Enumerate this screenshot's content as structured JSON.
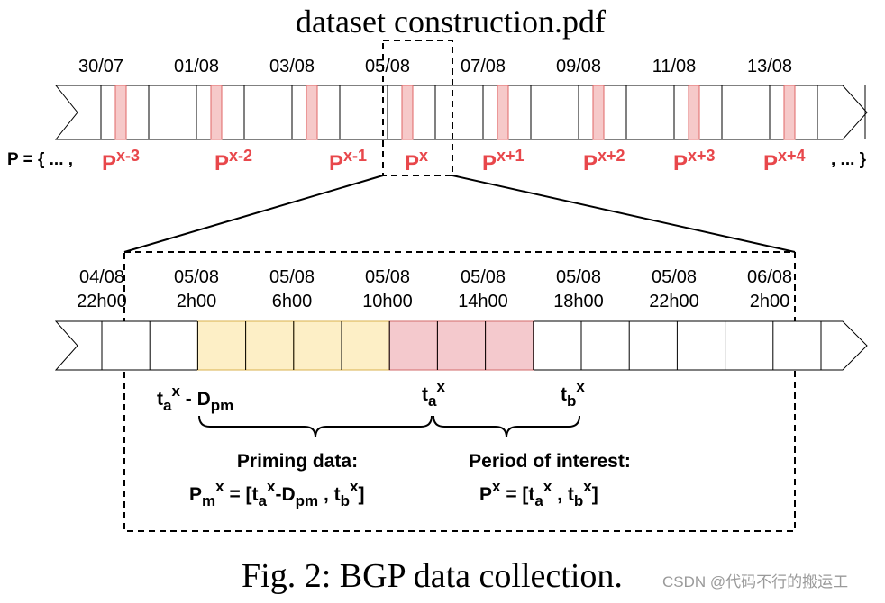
{
  "header": {
    "title": "dataset construction.pdf"
  },
  "top_timeline": {
    "dates": [
      "30/07",
      "01/08",
      "03/08",
      "05/08",
      "07/08",
      "09/08",
      "11/08",
      "13/08"
    ],
    "set_prefix": "P = { ... ,",
    "set_suffix": ", ... }",
    "periods": [
      {
        "base": "P",
        "sup": "x-3"
      },
      {
        "base": "P",
        "sup": "x-2"
      },
      {
        "base": "P",
        "sup": "x-1"
      },
      {
        "base": "P",
        "sup": "x"
      },
      {
        "base": "P",
        "sup": "x+1"
      },
      {
        "base": "P",
        "sup": "x+2"
      },
      {
        "base": "P",
        "sup": "x+3"
      },
      {
        "base": "P",
        "sup": "x+4"
      }
    ]
  },
  "zoom_timeline": {
    "times": [
      {
        "date": "04/08",
        "hour": "22h00"
      },
      {
        "date": "05/08",
        "hour": "2h00"
      },
      {
        "date": "05/08",
        "hour": "6h00"
      },
      {
        "date": "05/08",
        "hour": "10h00"
      },
      {
        "date": "05/08",
        "hour": "14h00"
      },
      {
        "date": "05/08",
        "hour": "18h00"
      },
      {
        "date": "05/08",
        "hour": "22h00"
      },
      {
        "date": "06/08",
        "hour": "2h00"
      }
    ],
    "markers": {
      "ta_minus_dpm": {
        "t": "t",
        "sub": "a",
        "sup": "x",
        "rest": " - D",
        "rest_sub": "pm"
      },
      "ta": {
        "t": "t",
        "sub": "a",
        "sup": "x"
      },
      "tb": {
        "t": "t",
        "sub": "b",
        "sup": "x"
      }
    },
    "priming": {
      "title": "Priming data:",
      "formula": {
        "p": "P",
        "p_sub": "m",
        "p_sup": "x",
        "eq": " = [t",
        "a_sub": "a",
        "a_sup": "x",
        "minus": "-D",
        "d_sub": "pm",
        "comma": " , t",
        "b_sub": "b",
        "b_sup": "x",
        "close": "]"
      }
    },
    "interest": {
      "title": "Period of interest:",
      "formula": {
        "p": "P",
        "p_sup": "x",
        "eq": " = [t",
        "a_sub": "a",
        "a_sup": "x",
        "comma": " , t",
        "b_sub": "b",
        "b_sup": "x",
        "close": "]"
      }
    }
  },
  "caption": {
    "text": "Fig. 2: BGP data collection.",
    "watermark": "CSDN @代码不行的搬运工"
  },
  "colors": {
    "highlight_fill": "#f6c9c9",
    "highlight_stroke": "#e06666",
    "priming_fill": "#fdefc6",
    "priming_stroke": "#d9b24c",
    "interest_fill": "#f4c9cd",
    "interest_stroke": "#d26a6a",
    "label_red": "#e8474b",
    "black": "#000000"
  }
}
